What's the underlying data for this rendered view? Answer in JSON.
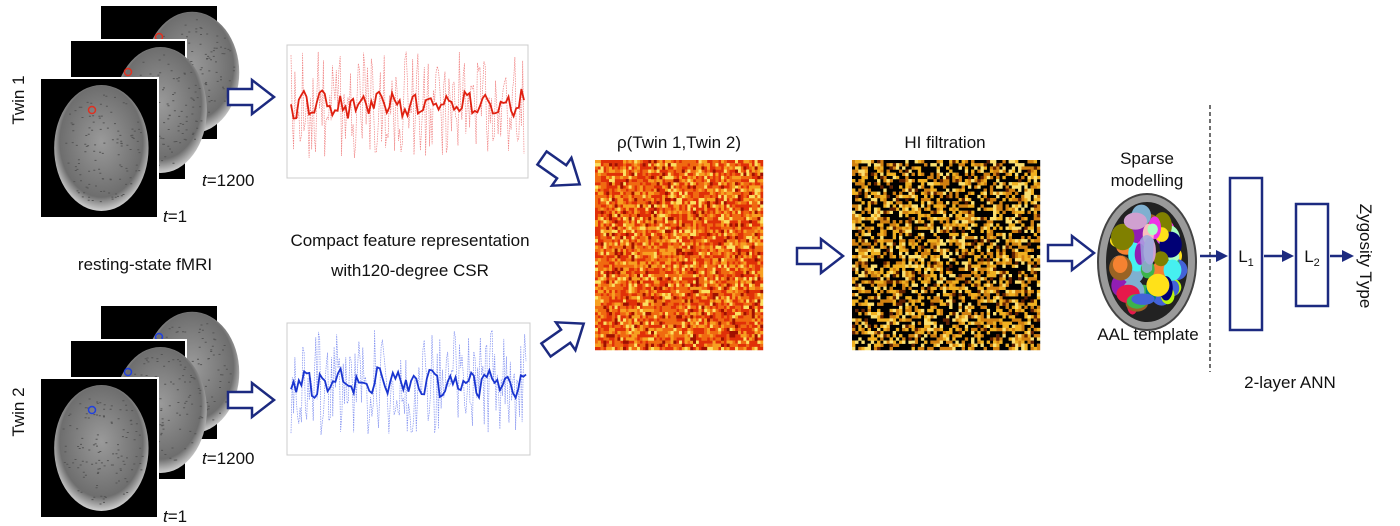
{
  "twin1": {
    "label": "Twin 1",
    "t_end": {
      "var": "t",
      "value": "=1200"
    },
    "t_start": {
      "var": "t",
      "value": "=1"
    }
  },
  "twin2": {
    "label": "Twin 2",
    "t_end": {
      "var": "t",
      "value": "=1200"
    },
    "t_start": {
      "var": "t",
      "value": "=1"
    }
  },
  "fmri_label": "resting-state fMRI",
  "feature_label": {
    "line1": "Compact feature representation",
    "line2": "with120-degree CSR"
  },
  "correlation_title": "ρ(Twin 1,Twin 2)",
  "filtration_title": "HI filtration",
  "sparse": {
    "line1": "Sparse",
    "line2": "modelling",
    "template": "AAL template"
  },
  "ann": {
    "layer1": {
      "base": "L",
      "sub": "1"
    },
    "layer2": {
      "base": "L",
      "sub": "2"
    },
    "label": "2-layer ANN",
    "output": "Zygosity Type"
  }
}
